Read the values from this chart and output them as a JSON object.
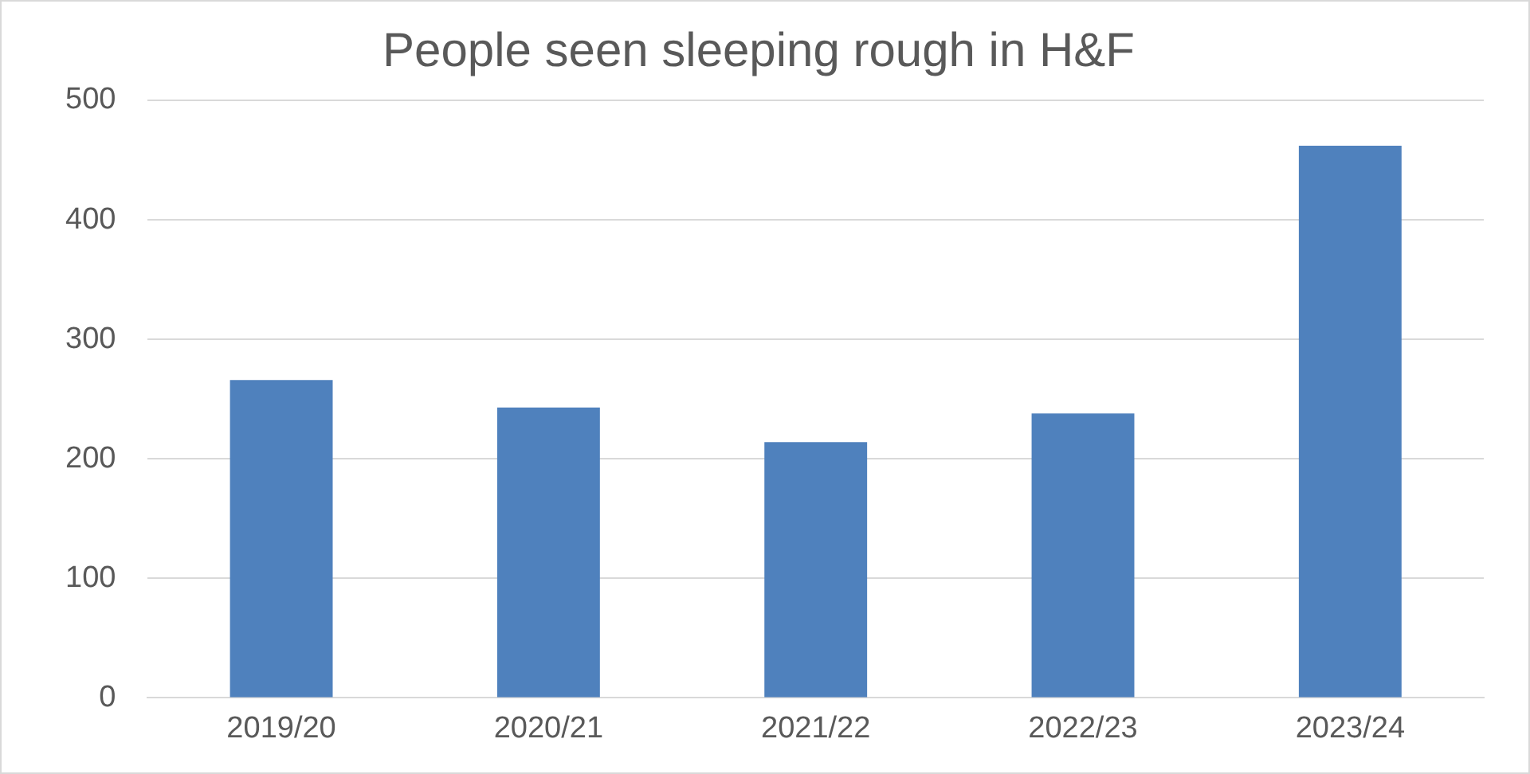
{
  "chart_data": {
    "type": "bar",
    "title": "People seen sleeping rough in H&F",
    "categories": [
      "2019/20",
      "2020/21",
      "2021/22",
      "2022/23",
      "2023/24"
    ],
    "values": [
      266,
      243,
      214,
      238,
      462
    ],
    "color": "#4f81bd",
    "ylim": [
      0,
      500
    ],
    "yticks": [
      0,
      100,
      200,
      300,
      400,
      500
    ],
    "grid": "y"
  }
}
